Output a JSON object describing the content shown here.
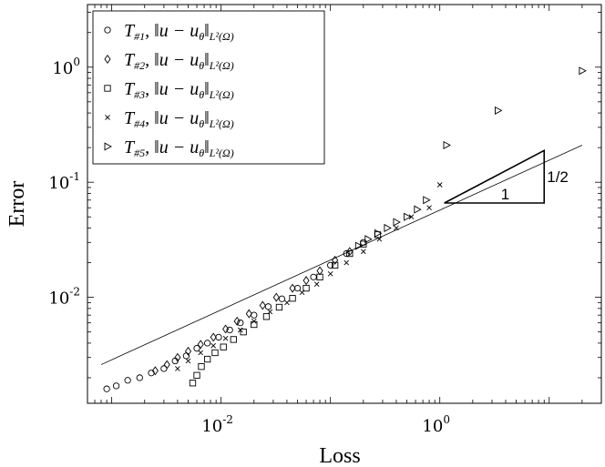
{
  "chart_data": {
    "type": "scatter",
    "xscale": "log",
    "yscale": "log",
    "xlabel": "Loss",
    "ylabel": "Error",
    "xlim": [
      0.0006,
      30
    ],
    "ylim": [
      0.0012,
      3.5
    ],
    "xticks": [
      {
        "value": 0.01,
        "base": "10",
        "exp": "-2"
      },
      {
        "value": 1,
        "base": "10",
        "exp": "0"
      }
    ],
    "yticks": [
      {
        "value": 0.01,
        "base": "10",
        "exp": "-2"
      },
      {
        "value": 0.1,
        "base": "10",
        "exp": "-1"
      },
      {
        "value": 1,
        "base": "10",
        "exp": "0"
      }
    ],
    "legend_position": "top-left",
    "series": [
      {
        "name_main": "T",
        "name_sub": "#1",
        "name_norm": ", ‖u − u",
        "name_theta": "θ",
        "name_end": "‖",
        "name_space": "L²(Ω)",
        "marker": "circle",
        "x": [
          0.0009,
          0.0011,
          0.0014,
          0.0018,
          0.0023,
          0.003,
          0.0038,
          0.0048,
          0.006,
          0.0075,
          0.0095,
          0.012,
          0.015,
          0.02,
          0.027,
          0.036,
          0.05,
          0.07,
          0.1,
          0.14,
          0.2
        ],
        "y": [
          0.0016,
          0.0017,
          0.0019,
          0.002,
          0.0022,
          0.0024,
          0.0028,
          0.0031,
          0.0036,
          0.004,
          0.0045,
          0.0052,
          0.006,
          0.007,
          0.0083,
          0.0097,
          0.012,
          0.015,
          0.019,
          0.024,
          0.03
        ]
      },
      {
        "name_main": "T",
        "name_sub": "#2",
        "name_norm": ", ‖u − u",
        "name_theta": "θ",
        "name_end": "‖",
        "name_space": "L²(Ω)",
        "marker": "diamond",
        "x": [
          0.0025,
          0.0032,
          0.004,
          0.005,
          0.0065,
          0.0085,
          0.011,
          0.014,
          0.018,
          0.024,
          0.032,
          0.045,
          0.06,
          0.08,
          0.11,
          0.15
        ],
        "y": [
          0.0023,
          0.0026,
          0.003,
          0.0034,
          0.0039,
          0.0045,
          0.0053,
          0.0062,
          0.0072,
          0.0085,
          0.01,
          0.012,
          0.014,
          0.017,
          0.021,
          0.025
        ]
      },
      {
        "name_main": "T",
        "name_sub": "#3",
        "name_norm": ", ‖u − u",
        "name_theta": "θ",
        "name_end": "‖",
        "name_space": "L²(Ω)",
        "marker": "square",
        "x": [
          0.0055,
          0.006,
          0.0066,
          0.0075,
          0.0088,
          0.0105,
          0.013,
          0.016,
          0.02,
          0.026,
          0.034,
          0.045,
          0.06,
          0.08,
          0.11,
          0.15,
          0.2,
          0.27
        ],
        "y": [
          0.0018,
          0.0021,
          0.0025,
          0.0029,
          0.0033,
          0.0037,
          0.0043,
          0.005,
          0.0058,
          0.0068,
          0.0082,
          0.0098,
          0.012,
          0.015,
          0.019,
          0.024,
          0.029,
          0.035
        ]
      },
      {
        "name_main": "T",
        "name_sub": "#4",
        "name_norm": ", ‖u − u",
        "name_theta": "θ",
        "name_end": "‖",
        "name_space": "L²(Ω)",
        "marker": "x",
        "x": [
          0.004,
          0.005,
          0.0065,
          0.0085,
          0.011,
          0.015,
          0.02,
          0.028,
          0.04,
          0.055,
          0.075,
          0.1,
          0.14,
          0.2,
          0.28,
          0.4,
          0.55,
          0.8,
          1.0
        ],
        "y": [
          0.0024,
          0.0028,
          0.0033,
          0.0038,
          0.0044,
          0.0052,
          0.0062,
          0.0075,
          0.009,
          0.011,
          0.013,
          0.016,
          0.02,
          0.025,
          0.032,
          0.04,
          0.05,
          0.06,
          0.095
        ]
      },
      {
        "name_main": "T",
        "name_sub": "#5",
        "name_norm": ", ‖u − u",
        "name_theta": "θ",
        "name_end": "‖",
        "name_space": "L²(Ω)",
        "marker": "triangle-right",
        "x": [
          0.18,
          0.22,
          0.27,
          0.33,
          0.4,
          0.5,
          0.62,
          0.75,
          1.15,
          3.4,
          20
        ],
        "y": [
          0.028,
          0.032,
          0.036,
          0.04,
          0.045,
          0.05,
          0.058,
          0.07,
          0.21,
          0.42,
          0.93
        ]
      }
    ],
    "reference_line": {
      "slope": 0.5,
      "x": [
        0.0008,
        20
      ],
      "y": [
        0.0026,
        0.21
      ]
    },
    "slope_triangle": {
      "x": [
        1.1,
        9
      ],
      "y_base": 0.066,
      "run_label": "1",
      "rise_label": "1/2"
    }
  }
}
